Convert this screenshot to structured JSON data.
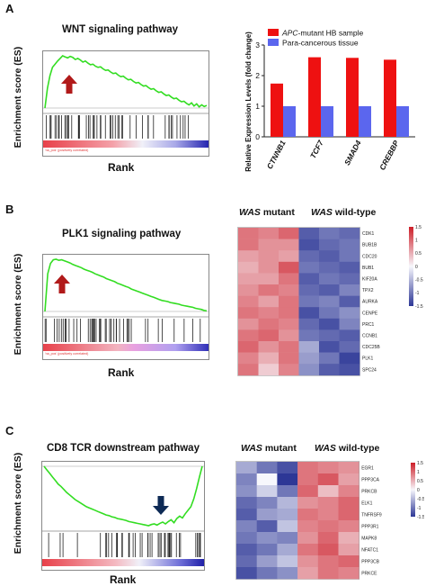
{
  "panels": {
    "A": {
      "letter": "A",
      "title": "WNT signaling pathway",
      "ylabel": "Enrichment score (ES)",
      "xlabel": "Rank",
      "strip_label": "'na_pos' (positively correlated)"
    },
    "B": {
      "letter": "B",
      "title": "PLK1 signaling pathway",
      "ylabel": "Enrichment score (ES)",
      "xlabel": "Rank",
      "strip_label": "'na_pos' (positively correlated)",
      "heatmap": {
        "header_left_em": "WAS",
        "header_left_rest": " mutant",
        "header_right_em": "WAS",
        "header_right_rest": " wild-type"
      }
    },
    "C": {
      "letter": "C",
      "title": "CD8 TCR downstream pathway",
      "ylabel": "Enrichment score (ES)",
      "xlabel": "Rank",
      "heatmap": {
        "header_left_em": "WAS",
        "header_left_rest": " mutant",
        "header_right_em": "WAS",
        "header_right_rest": " wild-type"
      }
    }
  },
  "chart_data": [
    {
      "id": "A-gsea",
      "type": "line",
      "title": "WNT signaling pathway",
      "xlabel": "Rank",
      "ylabel": "Enrichment score (ES)",
      "arrow": "up",
      "arrow_color": "#b11a1a",
      "line_color": "#33dd22",
      "es_curve": [
        0.0,
        0.38,
        0.62,
        0.78,
        0.84,
        0.9,
        0.95,
        1.0,
        0.98,
        0.96,
        0.99,
        0.97,
        0.93,
        0.95,
        0.92,
        0.88,
        0.9,
        0.86,
        0.83,
        0.84,
        0.8,
        0.78,
        0.79,
        0.75,
        0.72,
        0.73,
        0.69,
        0.66,
        0.67,
        0.63,
        0.6,
        0.61,
        0.57,
        0.54,
        0.55,
        0.51,
        0.48,
        0.49,
        0.45,
        0.42,
        0.43,
        0.39,
        0.36,
        0.37,
        0.33,
        0.3,
        0.31,
        0.27,
        0.24,
        0.25,
        0.21,
        0.18,
        0.19,
        0.15,
        0.12,
        0.13,
        0.09,
        0.06,
        0.1,
        0.04,
        0.08,
        0.02,
        0.06,
        0.03,
        0.05
      ]
    },
    {
      "id": "A-bar",
      "type": "bar",
      "ylabel": "Relative Expression Levels (fold change)",
      "ylim": [
        0,
        3
      ],
      "yticks": [
        0,
        1,
        2,
        3
      ],
      "categories": [
        "CTNNB1",
        "TCF7",
        "SMAD4",
        "CREBBP"
      ],
      "series": [
        {
          "name_em": "APC",
          "name_rest": "-mutant HB sample",
          "color": "#ee1111",
          "values": [
            1.74,
            2.6,
            2.58,
            2.52
          ]
        },
        {
          "name": "Para-cancerous tissue",
          "color": "#5b66ee",
          "values": [
            1.0,
            1.0,
            1.0,
            1.0
          ]
        }
      ],
      "legend": "top"
    },
    {
      "id": "B-gsea",
      "type": "line",
      "title": "PLK1 signaling pathway",
      "xlabel": "Rank",
      "ylabel": "Enrichment score (ES)",
      "arrow": "up",
      "arrow_color": "#b11a1a",
      "line_color": "#33dd22",
      "es_curve": [
        0.0,
        0.72,
        0.92,
        0.99,
        1.0,
        0.98,
        0.99,
        0.97,
        0.95,
        0.93,
        0.9,
        0.88,
        0.86,
        0.84,
        0.81,
        0.79,
        0.77,
        0.75,
        0.72,
        0.7,
        0.68,
        0.66,
        0.63,
        0.61,
        0.59,
        0.57,
        0.54,
        0.52,
        0.5,
        0.48,
        0.46,
        0.43,
        0.41,
        0.39,
        0.37,
        0.35,
        0.33,
        0.31,
        0.29,
        0.27,
        0.25,
        0.23,
        0.21,
        0.2,
        0.19,
        0.17,
        0.16,
        0.15,
        0.14,
        0.12,
        0.11,
        0.1,
        0.09,
        0.08,
        0.06,
        0.05,
        0.04,
        0.02,
        0.01
      ]
    },
    {
      "id": "B-heatmap",
      "type": "heatmap",
      "rows": [
        "CDK1",
        "BUB1B",
        "CDC20",
        "BUB1",
        "KIF20A",
        "TPX2",
        "AURKA",
        "CENPE",
        "PRC1",
        "CCNB1",
        "CDC25B",
        "PLK1",
        "SPC24"
      ],
      "scale_ticks": [
        "1.5",
        "1",
        "0.5",
        "0",
        "-0.5",
        "-1",
        "-1.5"
      ],
      "values": [
        [
          0.9,
          0.8,
          1.0,
          -1.2,
          -1.0,
          -1.1
        ],
        [
          0.9,
          0.7,
          0.7,
          -1.3,
          -1.1,
          -1.0
        ],
        [
          0.6,
          0.7,
          0.6,
          -1.1,
          -1.2,
          -1.0
        ],
        [
          0.5,
          0.7,
          1.1,
          -1.0,
          -1.1,
          -1.2
        ],
        [
          0.6,
          0.6,
          0.9,
          -1.2,
          -1.0,
          -1.1
        ],
        [
          0.7,
          0.9,
          0.8,
          -1.1,
          -1.2,
          -0.9
        ],
        [
          0.8,
          0.6,
          0.9,
          -1.0,
          -0.9,
          -1.2
        ],
        [
          0.9,
          0.8,
          0.9,
          -1.3,
          -1.0,
          -0.8
        ],
        [
          0.7,
          0.9,
          0.8,
          -1.1,
          -1.3,
          -0.9
        ],
        [
          0.9,
          1.0,
          0.7,
          -1.0,
          -1.1,
          -1.2
        ],
        [
          1.0,
          0.7,
          0.9,
          -0.6,
          -1.3,
          -1.1
        ],
        [
          0.8,
          0.5,
          0.9,
          -0.7,
          -1.0,
          -1.4
        ],
        [
          0.9,
          0.3,
          0.8,
          -0.8,
          -1.2,
          -1.3
        ]
      ]
    },
    {
      "id": "C-gsea",
      "type": "line",
      "title": "CD8 TCR downstream pathway",
      "xlabel": "Rank",
      "ylabel": "Enrichment score (ES)",
      "arrow": "down",
      "arrow_color": "#0d2a55",
      "line_color": "#33dd22",
      "es_curve": [
        0.0,
        -0.06,
        -0.12,
        -0.18,
        -0.24,
        -0.3,
        -0.34,
        -0.39,
        -0.44,
        -0.48,
        -0.52,
        -0.56,
        -0.59,
        -0.62,
        -0.65,
        -0.68,
        -0.7,
        -0.72,
        -0.74,
        -0.76,
        -0.78,
        -0.8,
        -0.82,
        -0.83,
        -0.85,
        -0.86,
        -0.88,
        -0.89,
        -0.9,
        -0.91,
        -0.93,
        -0.94,
        -0.95,
        -0.96,
        -0.97,
        -0.98,
        -0.99,
        -1.0,
        -0.98,
        -0.97,
        -0.99,
        -0.96,
        -0.94,
        -0.97,
        -0.93,
        -0.9,
        -0.95,
        -0.88,
        -0.84,
        -0.87,
        -0.8,
        -0.74,
        -0.68,
        -0.55,
        -0.38,
        -0.18,
        0.0
      ]
    },
    {
      "id": "C-heatmap",
      "type": "heatmap",
      "rows": [
        "EGR1",
        "PPP3CA",
        "PRKCB",
        "ELK1",
        "TNFRSF9",
        "PPP3R1",
        "MAPK8",
        "NFATC1",
        "PPP3CB",
        "PRKCE"
      ],
      "scale_ticks": [
        "1.5",
        "1",
        "0.5",
        "0",
        "-0.5",
        "-1",
        "-1.5"
      ],
      "values": [
        [
          -0.6,
          -1.0,
          -1.3,
          0.9,
          0.8,
          0.7
        ],
        [
          -0.9,
          0.0,
          -1.5,
          0.9,
          1.1,
          0.6
        ],
        [
          -0.8,
          -0.3,
          -1.0,
          1.0,
          0.4,
          0.8
        ],
        [
          -1.1,
          -0.9,
          -0.5,
          0.7,
          0.8,
          1.0
        ],
        [
          -1.2,
          -0.7,
          -0.6,
          0.9,
          0.8,
          1.0
        ],
        [
          -0.9,
          -1.2,
          -0.4,
          0.8,
          0.9,
          0.8
        ],
        [
          -1.0,
          -0.8,
          -0.9,
          0.7,
          1.0,
          0.5
        ],
        [
          -1.2,
          -1.0,
          -0.6,
          0.9,
          1.1,
          0.6
        ],
        [
          -1.1,
          -0.7,
          -0.4,
          0.7,
          0.9,
          1.0
        ],
        [
          -1.3,
          -1.0,
          -0.8,
          0.6,
          0.9,
          0.8
        ]
      ]
    }
  ]
}
